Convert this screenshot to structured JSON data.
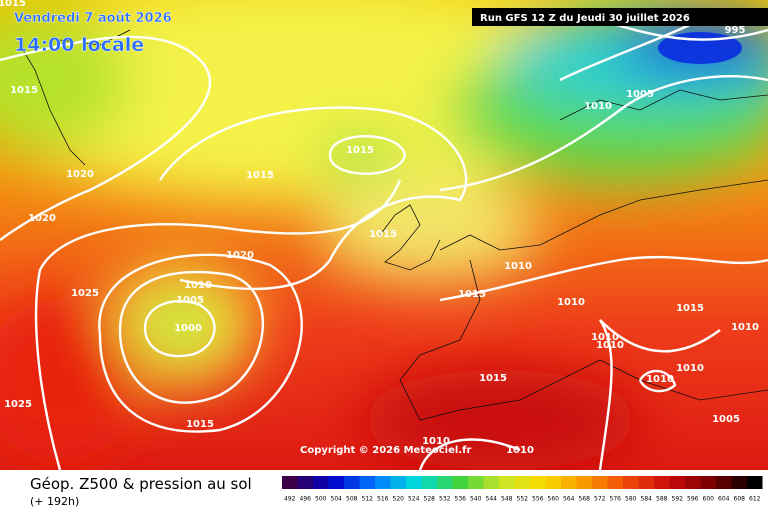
{
  "header": {
    "date": "Vendredi 7 août 2026",
    "time": "14:00 locale",
    "run": "Run GFS 12 Z du Jeudi 30 juillet 2026"
  },
  "copyright": "Copyright © 2026 Meteociel.fr",
  "footer": {
    "title": "Géop. Z500 & pression au sol",
    "lead": "(+ 192h)"
  },
  "legend": {
    "values": [
      492,
      496,
      500,
      504,
      508,
      512,
      516,
      520,
      524,
      528,
      532,
      536,
      540,
      544,
      548,
      552,
      556,
      560,
      564,
      568,
      572,
      576,
      580,
      584,
      588,
      592,
      596,
      600,
      604,
      608,
      612
    ]
  },
  "isobar_labels": [
    "1015",
    "1015",
    "1020",
    "1015",
    "1015",
    "1020",
    "1020",
    "1015",
    "1010",
    "1015",
    "1010",
    "1005",
    "1000",
    "1025",
    "1025",
    "1015",
    "1010",
    "1010",
    "1010",
    "1015",
    "1010",
    "1015",
    "1010",
    "1010",
    "1005",
    "1010",
    "1010",
    "1010",
    "1005",
    "995"
  ]
}
